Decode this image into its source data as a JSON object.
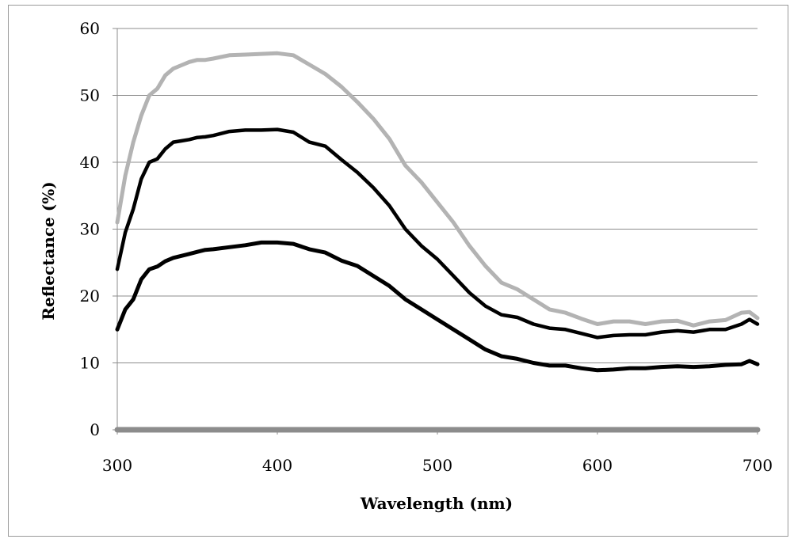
{
  "chart_data": {
    "type": "line",
    "title": "",
    "xlabel": "Wavelength (nm)",
    "ylabel": "Reflectance (%)",
    "xlim": [
      300,
      700
    ],
    "ylim": [
      0,
      60
    ],
    "x_ticks": [
      300,
      400,
      500,
      600,
      700
    ],
    "y_ticks": [
      0,
      10,
      20,
      30,
      40,
      50,
      60
    ],
    "grid": "horizontal",
    "legend": "none",
    "series": [
      {
        "color": "#b3b3b3",
        "stroke": 5,
        "x": [
          300,
          305,
          310,
          315,
          320,
          325,
          330,
          335,
          340,
          345,
          350,
          355,
          360,
          370,
          380,
          390,
          400,
          410,
          420,
          430,
          440,
          450,
          460,
          470,
          480,
          490,
          500,
          510,
          520,
          530,
          540,
          550,
          560,
          570,
          580,
          590,
          600,
          610,
          620,
          630,
          640,
          650,
          660,
          670,
          680,
          690,
          695,
          700
        ],
        "values": [
          31,
          38,
          43,
          47,
          50,
          51,
          53,
          54,
          54.5,
          55,
          55.3,
          55.3,
          55.5,
          56,
          56.1,
          56.2,
          56.3,
          56,
          54.6,
          53.2,
          51.3,
          49,
          46.5,
          43.5,
          39.5,
          37,
          34,
          31,
          27.5,
          24.5,
          22,
          21,
          19.5,
          18,
          17.5,
          16.6,
          15.8,
          16.2,
          16.2,
          15.8,
          16.2,
          16.3,
          15.6,
          16.2,
          16.4,
          17.5,
          17.6,
          16.7
        ]
      },
      {
        "color": "#000000",
        "stroke": 4.5,
        "x": [
          300,
          305,
          310,
          315,
          320,
          325,
          330,
          335,
          340,
          345,
          350,
          355,
          360,
          370,
          380,
          390,
          400,
          410,
          420,
          430,
          440,
          450,
          460,
          470,
          480,
          490,
          500,
          510,
          520,
          530,
          540,
          550,
          560,
          570,
          580,
          590,
          600,
          610,
          620,
          630,
          640,
          650,
          660,
          670,
          680,
          690,
          695,
          700
        ],
        "values": [
          24,
          29.5,
          33,
          37.5,
          40,
          40.5,
          42,
          43,
          43.2,
          43.4,
          43.7,
          43.8,
          44,
          44.6,
          44.8,
          44.8,
          44.9,
          44.5,
          43,
          42.4,
          40.4,
          38.5,
          36.2,
          33.5,
          30,
          27.5,
          25.5,
          23,
          20.5,
          18.5,
          17.2,
          16.8,
          15.8,
          15.2,
          15,
          14.4,
          13.8,
          14.1,
          14.2,
          14.2,
          14.6,
          14.8,
          14.6,
          15,
          15,
          15.8,
          16.5,
          15.8
        ]
      },
      {
        "color": "#000000",
        "stroke": 5,
        "x": [
          300,
          305,
          310,
          315,
          320,
          325,
          330,
          335,
          340,
          345,
          350,
          355,
          360,
          370,
          380,
          390,
          400,
          410,
          420,
          430,
          440,
          450,
          460,
          470,
          480,
          490,
          500,
          510,
          520,
          530,
          540,
          550,
          560,
          570,
          580,
          590,
          600,
          610,
          620,
          630,
          640,
          650,
          660,
          670,
          680,
          690,
          695,
          700
        ],
        "values": [
          15,
          18,
          19.5,
          22.5,
          24,
          24.4,
          25.2,
          25.7,
          26,
          26.3,
          26.6,
          26.9,
          27,
          27.3,
          27.6,
          28,
          28,
          27.8,
          27,
          26.5,
          25.3,
          24.5,
          23,
          21.5,
          19.5,
          18,
          16.5,
          15,
          13.5,
          12,
          11,
          10.6,
          10,
          9.6,
          9.6,
          9.2,
          8.9,
          9,
          9.2,
          9.2,
          9.4,
          9.5,
          9.4,
          9.5,
          9.7,
          9.8,
          10.3,
          9.8
        ]
      },
      {
        "color": "#8c8c8c",
        "stroke": 7,
        "x": [
          300,
          700
        ],
        "values": [
          0,
          0
        ]
      }
    ]
  }
}
